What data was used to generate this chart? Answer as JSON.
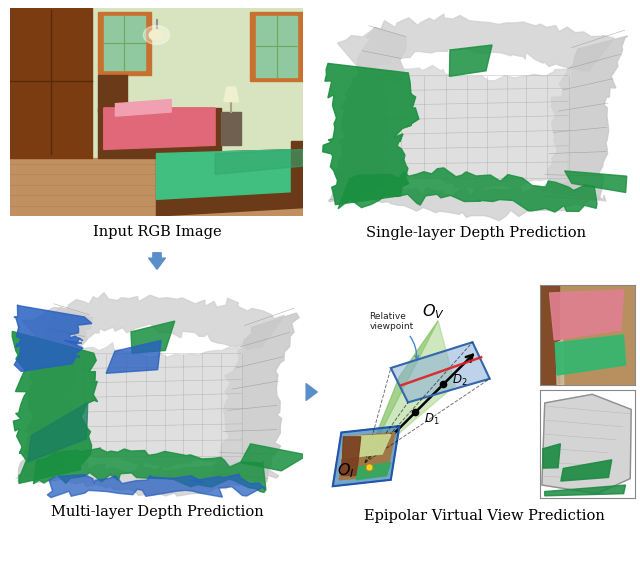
{
  "fig_width": 6.4,
  "fig_height": 5.76,
  "dpi": 100,
  "bg_color": "#ffffff",
  "labels": {
    "top_left": "Input RGB Image",
    "top_right": "Single-layer Depth Prediction",
    "bot_left": "Multi-layer Depth Prediction",
    "bot_right": "Epipolar Virtual View Prediction"
  },
  "label_fontsize": 10.5,
  "arrow_color": "#5B8FC9",
  "bedroom_colors": {
    "wall": "#D8E4C0",
    "floor": "#C09060",
    "bed_cover1": "#E06878",
    "bed_cover2": "#40BF80",
    "furniture": "#6B3A18",
    "door": "#7A3C10",
    "window_frame": "#C87030",
    "window_glass": "#90C8A0",
    "light_wall": "#D0D8A8"
  },
  "mesh_green": "#1A9040",
  "mesh_blue": "#2860C0",
  "mesh_teal": "#10907A",
  "mesh_grey_light": "#D8D8D8",
  "mesh_grey_dark": "#A0A0A0",
  "diagram_plane_blue": "#8AAFD8",
  "diagram_cone_green": "#80C060",
  "diagram_red": "#DD2020",
  "diagram_curve_arrow": "#4488CC"
}
